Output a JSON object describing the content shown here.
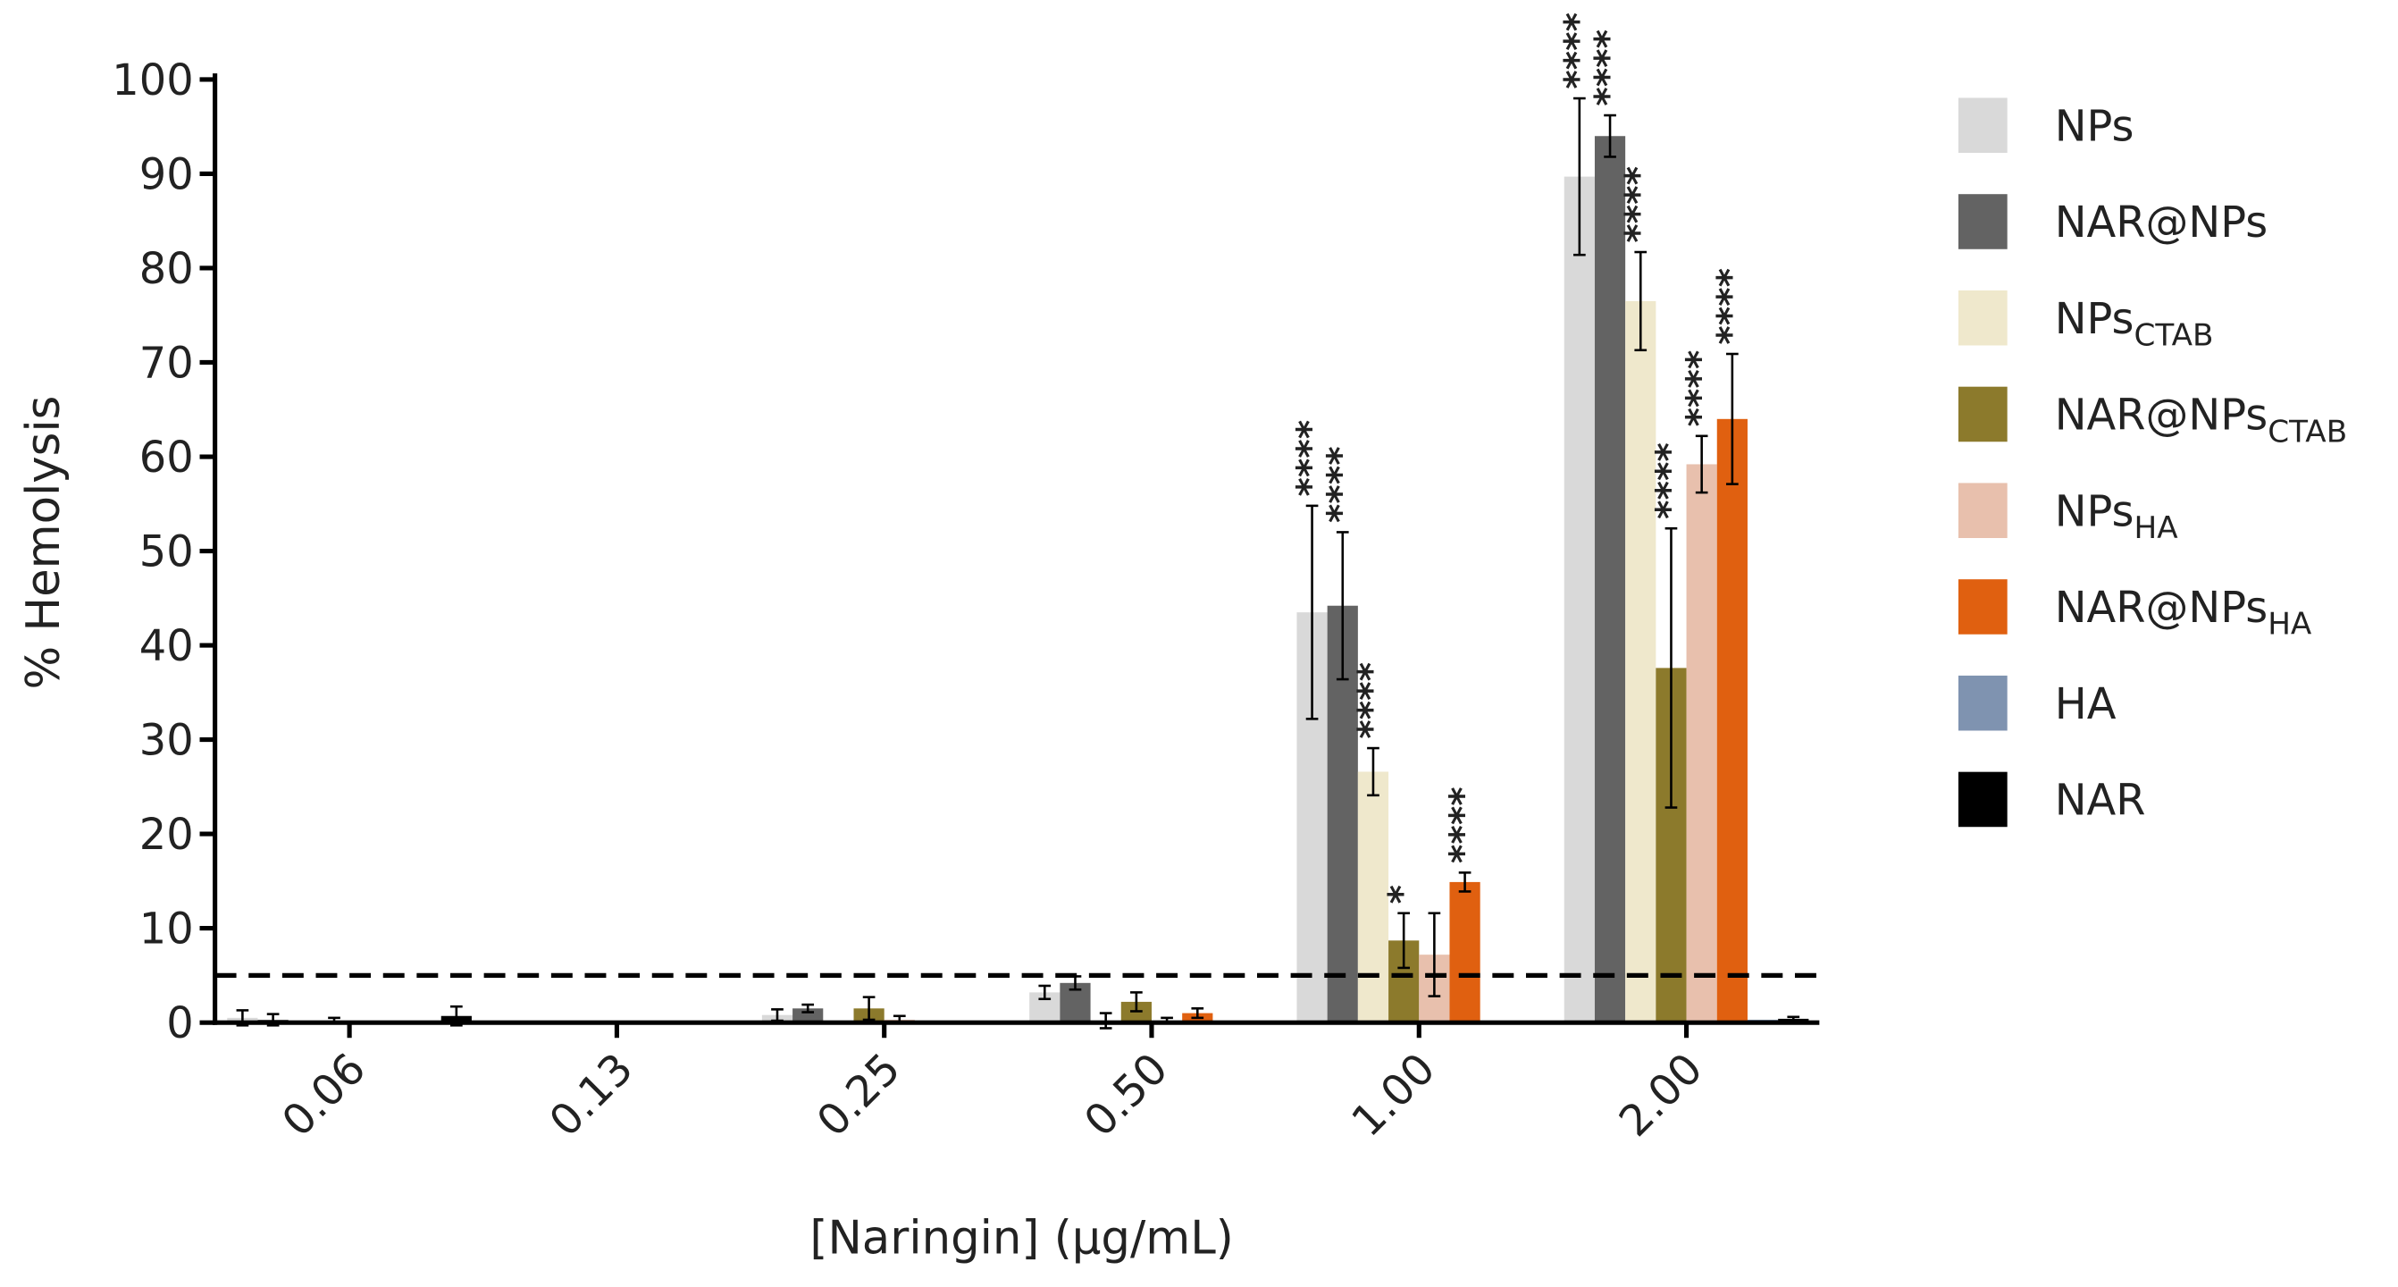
{
  "chart_data": {
    "type": "bar",
    "x_label": "[Naringin] (µg/mL)",
    "y_label": "% Hemolysis",
    "categories": [
      "0.06",
      "0.13",
      "0.25",
      "0.50",
      "1.00",
      "2.00"
    ],
    "ylim": [
      0,
      100
    ],
    "yticks": [
      0,
      10,
      20,
      30,
      40,
      50,
      60,
      70,
      80,
      90,
      100
    ],
    "threshold": 5,
    "series": [
      {
        "name": "NPs",
        "subscript": null,
        "color": "#d9d9d9",
        "values": [
          0.5,
          0.1,
          0.8,
          3.2,
          43.5,
          89.7
        ],
        "errors": [
          0.8,
          null,
          0.6,
          0.7,
          11.3,
          8.3
        ],
        "significance": [
          null,
          null,
          null,
          null,
          "****",
          "****"
        ]
      },
      {
        "name": "NAR@NPs",
        "subscript": null,
        "color": "#636363",
        "values": [
          0.3,
          0.1,
          1.5,
          4.2,
          44.2,
          94
        ],
        "errors": [
          0.6,
          null,
          0.4,
          0.7,
          7.8,
          2.2
        ],
        "significance": [
          null,
          null,
          null,
          null,
          "****",
          "****"
        ]
      },
      {
        "name": "NPs",
        "subscript": "CTAB",
        "color": "#efe8cc",
        "values": [
          0.1,
          0.1,
          0.2,
          0.2,
          26.6,
          76.5
        ],
        "errors": [
          null,
          null,
          null,
          0.8,
          2.5,
          5.2
        ],
        "significance": [
          null,
          null,
          null,
          null,
          "****",
          "****"
        ]
      },
      {
        "name": "NAR@NPs",
        "subscript": "CTAB",
        "color": "#8c7a2c",
        "values": [
          0.2,
          0.1,
          1.5,
          2.2,
          8.7,
          37.6
        ],
        "errors": [
          0.3,
          null,
          1.2,
          1,
          2.9,
          14.8
        ],
        "significance": [
          null,
          null,
          null,
          null,
          "*",
          "****"
        ]
      },
      {
        "name": "NPs",
        "subscript": "HA",
        "color": "#e8c0ad",
        "values": [
          0.1,
          0.1,
          0.3,
          0.2,
          7.2,
          59.2
        ],
        "errors": [
          null,
          null,
          0.4,
          0.3,
          4.4,
          3
        ],
        "significance": [
          null,
          null,
          null,
          null,
          null,
          "****"
        ]
      },
      {
        "name": "NAR@NPs",
        "subscript": "HA",
        "color": "#e06010",
        "values": [
          0.1,
          0.1,
          0.1,
          1,
          14.9,
          64
        ],
        "errors": [
          null,
          null,
          null,
          0.5,
          1,
          6.9
        ],
        "significance": [
          null,
          null,
          null,
          null,
          "****",
          "****"
        ]
      },
      {
        "name": "HA",
        "subscript": null,
        "color": "#7f93b0",
        "values": [
          0.1,
          0.1,
          0.1,
          0.2,
          0.2,
          0.3
        ],
        "errors": [
          null,
          null,
          null,
          null,
          null,
          null
        ],
        "significance": [
          null,
          null,
          null,
          null,
          null,
          null
        ]
      },
      {
        "name": "NAR",
        "subscript": null,
        "color": "#000000",
        "values": [
          0.7,
          0.1,
          0.1,
          0.2,
          0.2,
          0.4
        ],
        "errors": [
          1,
          null,
          null,
          null,
          null,
          0.2
        ],
        "significance": [
          null,
          null,
          null,
          null,
          null,
          null
        ]
      }
    ]
  }
}
